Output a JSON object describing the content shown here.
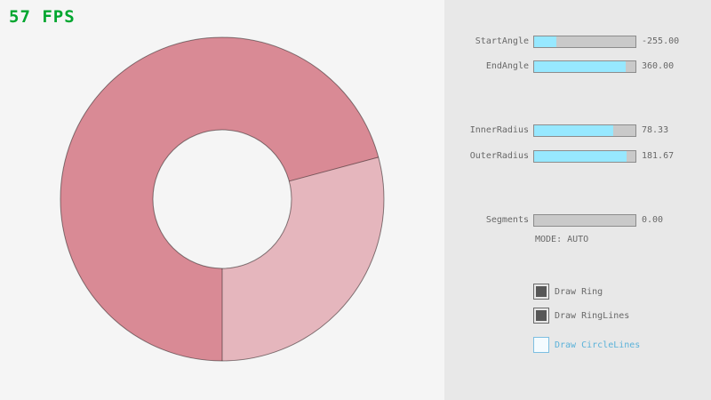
{
  "fps_label": "57 FPS",
  "ring": {
    "color_base": "#D98A95",
    "color_overlap": "#E5B6BD",
    "line_color": "rgba(0,0,0,0.45)"
  },
  "sliders": [
    {
      "label": "StartAngle",
      "value": "-255.00",
      "fill_pct": 21.7
    },
    {
      "label": "EndAngle",
      "value": "360.00",
      "fill_pct": 90.0
    },
    {
      "label": "InnerRadius",
      "value": "78.33",
      "fill_pct": 78.3
    },
    {
      "label": "OuterRadius",
      "value": "181.67",
      "fill_pct": 90.8
    },
    {
      "label": "Segments",
      "value": "0.00",
      "fill_pct": 0
    }
  ],
  "mode_text": "MODE: AUTO",
  "checkboxes": [
    {
      "label": "Draw Ring",
      "checked": true
    },
    {
      "label": "Draw RingLines",
      "checked": true
    },
    {
      "label": "Draw CircleLines",
      "checked": false
    }
  ],
  "colors": {
    "fps_green": "#00A62F",
    "slider_fill_cyan": "#97E8FF",
    "focus_blue": "#5BB2D9",
    "panel_bg": "#E8E8E8",
    "canvas_bg": "#F5F5F5"
  }
}
